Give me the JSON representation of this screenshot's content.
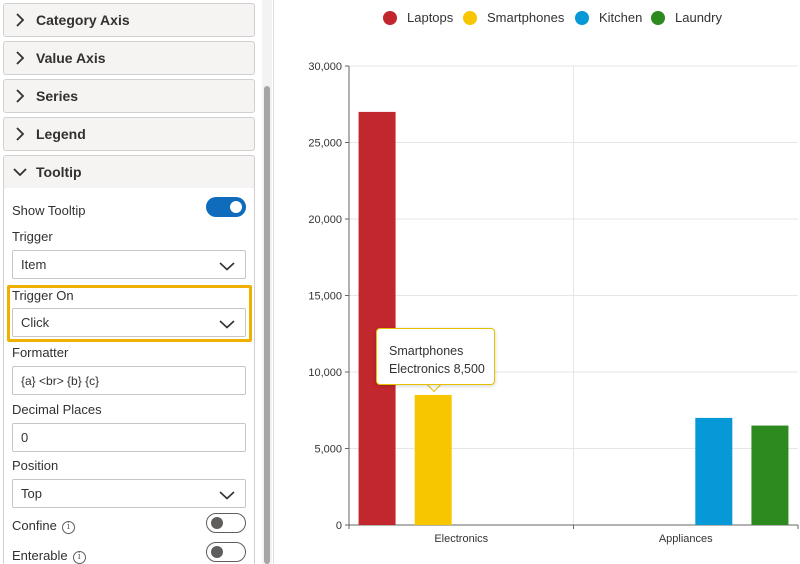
{
  "sections": {
    "category_axis": "Category Axis",
    "value_axis": "Value Axis",
    "series": "Series",
    "legend": "Legend",
    "tooltip": "Tooltip"
  },
  "tooltip_settings": {
    "show_tooltip_label": "Show Tooltip",
    "show_tooltip_on": true,
    "trigger_label": "Trigger",
    "trigger_value": "Item",
    "trigger_on_label": "Trigger On",
    "trigger_on_value": "Click",
    "formatter_label": "Formatter",
    "formatter_value": "{a} <br> {b} {c}",
    "decimal_places_label": "Decimal Places",
    "decimal_places_value": "0",
    "position_label": "Position",
    "position_value": "Top",
    "confine_label": "Confine",
    "confine_on": false,
    "enterable_label": "Enterable",
    "enterable_on": false,
    "info_glyph": "i"
  },
  "colors": {
    "accent": "#0f6cbd",
    "highlight": "#f0b000"
  },
  "chart_data": {
    "type": "bar",
    "categories": [
      "Electronics",
      "Appliances"
    ],
    "series": [
      {
        "name": "Laptops",
        "color": "#c1272d",
        "values": [
          27000,
          null
        ]
      },
      {
        "name": "Smartphones",
        "color": "#f7c600",
        "values": [
          8500,
          null
        ]
      },
      {
        "name": "Kitchen",
        "color": "#0798d8",
        "values": [
          null,
          7000
        ]
      },
      {
        "name": "Laundry",
        "color": "#2c8a1f",
        "values": [
          null,
          6500
        ]
      }
    ],
    "ylim": [
      0,
      30000
    ],
    "yticks": [
      0,
      5000,
      10000,
      15000,
      20000,
      25000,
      30000
    ],
    "ytick_labels": [
      "0",
      "5,000",
      "10,000",
      "15,000",
      "20,000",
      "25,000",
      "30,000"
    ],
    "grid": true,
    "legend_position": "top",
    "tooltip": {
      "line1": "Smartphones",
      "line2": "Electronics 8,500"
    }
  }
}
